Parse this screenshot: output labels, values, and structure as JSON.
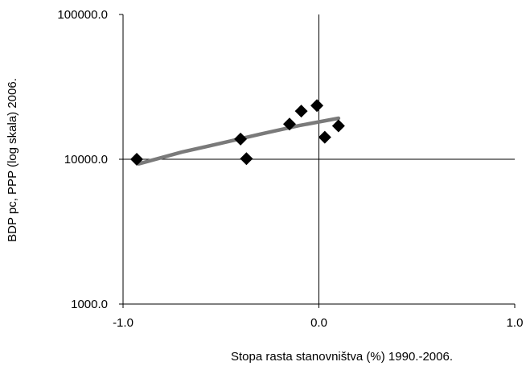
{
  "chart_data": {
    "type": "scatter",
    "xlabel": "Stopa rasta stanovništva  (%) 1990.-2006.",
    "ylabel": "BDP pc, PPP (log skala) 2006.",
    "x_scale": "linear",
    "y_scale": "log",
    "xlim": [
      -1.0,
      1.0
    ],
    "ylim": [
      1000,
      100000
    ],
    "x_ticks": [
      -1.0,
      0.0,
      1.0
    ],
    "x_tick_labels": [
      "-1.0",
      "0.0",
      "1.0"
    ],
    "y_ticks": [
      1000,
      10000,
      100000
    ],
    "y_tick_labels": [
      "1000.0",
      "10000.0",
      "100000.0"
    ],
    "grid": false,
    "reference_lines": {
      "x": 0.0,
      "y": 10000
    },
    "legend": "none",
    "series": [
      {
        "type": "scatter",
        "marker": "diamond",
        "color": "#000000",
        "points": [
          {
            "x": -0.93,
            "y": 10000
          },
          {
            "x": -0.4,
            "y": 13800
          },
          {
            "x": -0.37,
            "y": 10100
          },
          {
            "x": -0.15,
            "y": 17500
          },
          {
            "x": -0.09,
            "y": 21500
          },
          {
            "x": -0.01,
            "y": 23500
          },
          {
            "x": 0.03,
            "y": 14200
          },
          {
            "x": 0.1,
            "y": 17000
          }
        ]
      },
      {
        "type": "line",
        "role": "trendline",
        "color": "#7a7a7a",
        "points": [
          {
            "x": -0.92,
            "y": 9300
          },
          {
            "x": -0.7,
            "y": 11200
          },
          {
            "x": -0.5,
            "y": 12900
          },
          {
            "x": -0.3,
            "y": 14900
          },
          {
            "x": -0.1,
            "y": 17100
          },
          {
            "x": 0.1,
            "y": 19200
          }
        ]
      }
    ]
  }
}
